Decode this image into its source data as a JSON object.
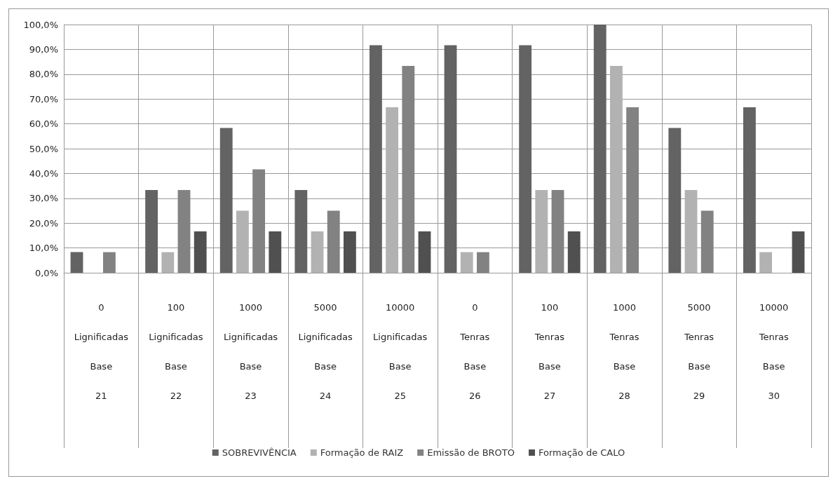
{
  "chart_data": {
    "type": "bar",
    "categories": [
      "0\nLignificadas\nBase\n21",
      "100\nLignificadas\nBase\n22",
      "1000\nLignificadas\nBase\n23",
      "5000\nLignificadas\nBase\n24",
      "10000\nLignificadas\nBase\n25",
      "0\nTenras\nBase\n26",
      "100\nTenras\nBase\n27",
      "1000\nTenras\nBase\n28",
      "5000\nTenras\nBase\n29",
      "10000\nTenras\nBase\n30"
    ],
    "series": [
      {
        "name": "SOBREVIVÊNCIA",
        "color": "#636363",
        "values": [
          8.3,
          33.3,
          58.3,
          33.3,
          91.7,
          91.7,
          91.7,
          100,
          58.3,
          66.7
        ]
      },
      {
        "name": "Formação de RAIZ",
        "color": "#b2b2b2",
        "values": [
          0,
          8.3,
          25,
          16.7,
          66.7,
          8.3,
          33.3,
          83.3,
          33.3,
          8.3
        ]
      },
      {
        "name": "Emissão de BROTO",
        "color": "#828282",
        "values": [
          8.3,
          33.3,
          41.7,
          25,
          83.3,
          8.3,
          33.3,
          66.7,
          25,
          0
        ]
      },
      {
        "name": "Formação de CALO",
        "color": "#505050",
        "values": [
          0,
          16.7,
          16.7,
          16.7,
          16.7,
          0,
          16.7,
          0,
          0,
          16.7
        ]
      }
    ],
    "ylim": [
      0,
      100
    ],
    "yticks": [
      {
        "value": 0,
        "label": "0,0%"
      },
      {
        "value": 10,
        "label": "10,0%"
      },
      {
        "value": 20,
        "label": "20,0%"
      },
      {
        "value": 30,
        "label": "30,0%"
      },
      {
        "value": 40,
        "label": "40,0%"
      },
      {
        "value": 50,
        "label": "50,0%"
      },
      {
        "value": 60,
        "label": "60,0%"
      },
      {
        "value": 70,
        "label": "70,0%"
      },
      {
        "value": 80,
        "label": "80,0%"
      },
      {
        "value": 90,
        "label": "90,0%"
      },
      {
        "value": 100,
        "label": "100,0%"
      }
    ],
    "grid": true,
    "legend": "bottom"
  }
}
